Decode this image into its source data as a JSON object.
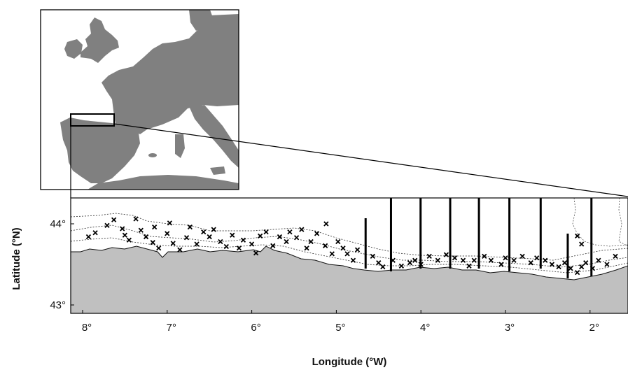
{
  "inset_map": {
    "region": "Western Europe",
    "land_color": "#808080",
    "sea_color": "#ffffff",
    "study_box_label": ""
  },
  "main_map": {
    "land_color": "#c0c0c0",
    "sea_color": "#ffffff",
    "x_axis": {
      "title": "Longitude (°W)",
      "ticks": [
        "8°",
        "7°",
        "6°",
        "5°",
        "4°",
        "3°",
        "2°"
      ],
      "values": [
        8,
        7,
        6,
        5,
        4,
        3,
        2
      ]
    },
    "y_axis": {
      "title": "Latitude (°N)",
      "ticks": [
        "44°",
        "43°"
      ],
      "values": [
        44,
        43
      ]
    },
    "transects_lon_w": [
      4.72,
      4.42,
      4.07,
      3.72,
      3.38,
      3.02,
      2.65,
      2.33,
      2.05
    ],
    "sample_markers": [
      [
        7.98,
        43.84
      ],
      [
        7.9,
        43.89
      ],
      [
        7.76,
        43.98
      ],
      [
        7.68,
        44.05
      ],
      [
        7.58,
        43.94
      ],
      [
        7.55,
        43.86
      ],
      [
        7.5,
        43.8
      ],
      [
        7.42,
        44.06
      ],
      [
        7.36,
        43.92
      ],
      [
        7.3,
        43.84
      ],
      [
        7.22,
        43.77
      ],
      [
        7.2,
        43.96
      ],
      [
        7.15,
        43.7
      ],
      [
        7.05,
        43.88
      ],
      [
        7.02,
        44.01
      ],
      [
        6.98,
        43.76
      ],
      [
        6.9,
        43.68
      ],
      [
        6.82,
        43.83
      ],
      [
        6.78,
        43.96
      ],
      [
        6.7,
        43.75
      ],
      [
        6.62,
        43.9
      ],
      [
        6.55,
        43.84
      ],
      [
        6.5,
        43.93
      ],
      [
        6.42,
        43.78
      ],
      [
        6.35,
        43.72
      ],
      [
        6.28,
        43.86
      ],
      [
        6.2,
        43.7
      ],
      [
        6.15,
        43.8
      ],
      [
        6.05,
        43.75
      ],
      [
        6.0,
        43.64
      ],
      [
        5.95,
        43.85
      ],
      [
        5.88,
        43.9
      ],
      [
        5.8,
        43.73
      ],
      [
        5.72,
        43.84
      ],
      [
        5.64,
        43.78
      ],
      [
        5.6,
        43.9
      ],
      [
        5.52,
        43.83
      ],
      [
        5.46,
        43.93
      ],
      [
        5.4,
        43.7
      ],
      [
        5.35,
        43.78
      ],
      [
        5.28,
        43.88
      ],
      [
        5.18,
        43.73
      ],
      [
        5.1,
        43.63
      ],
      [
        5.03,
        43.78
      ],
      [
        4.97,
        43.7
      ],
      [
        4.92,
        43.63
      ],
      [
        4.85,
        43.55
      ],
      [
        4.8,
        43.68
      ],
      [
        4.62,
        43.6
      ],
      [
        4.55,
        43.52
      ],
      [
        4.5,
        43.47
      ],
      [
        4.38,
        43.55
      ],
      [
        4.28,
        43.48
      ],
      [
        4.18,
        43.52
      ],
      [
        4.12,
        43.55
      ],
      [
        4.05,
        43.5
      ],
      [
        3.95,
        43.6
      ],
      [
        3.85,
        43.55
      ],
      [
        3.75,
        43.62
      ],
      [
        3.65,
        43.58
      ],
      [
        3.55,
        43.55
      ],
      [
        3.48,
        43.48
      ],
      [
        3.42,
        43.55
      ],
      [
        3.3,
        43.6
      ],
      [
        3.22,
        43.55
      ],
      [
        3.1,
        43.5
      ],
      [
        3.05,
        43.58
      ],
      [
        2.95,
        43.55
      ],
      [
        2.85,
        43.6
      ],
      [
        2.75,
        43.52
      ],
      [
        2.68,
        43.58
      ],
      [
        2.58,
        43.55
      ],
      [
        2.5,
        43.5
      ],
      [
        2.42,
        43.47
      ],
      [
        2.35,
        43.52
      ],
      [
        2.28,
        43.45
      ],
      [
        2.2,
        43.4
      ],
      [
        2.15,
        43.47
      ],
      [
        2.1,
        43.52
      ],
      [
        2.02,
        43.45
      ],
      [
        1.95,
        43.55
      ],
      [
        1.85,
        43.5
      ],
      [
        1.75,
        43.6
      ],
      [
        1.58,
        43.72
      ],
      [
        5.17,
        44.0
      ],
      [
        2.2,
        43.85
      ],
      [
        2.15,
        43.75
      ]
    ]
  }
}
